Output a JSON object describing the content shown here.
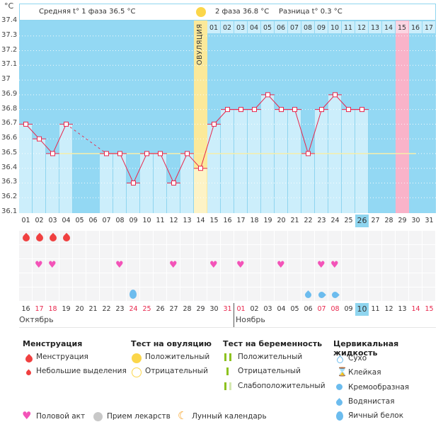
{
  "unit_label": "°C",
  "header": {
    "phase1": "Средняя t° 1 фаза 36.5 °C",
    "phase2": "2 фаза 36.8 °C",
    "difference": "Разница t° 0.3 °C",
    "ovulation_label": "ОВУЛЯЦИЯ"
  },
  "colors": {
    "chart_bg": "#93d8f3",
    "bar_fill": "#cceefb",
    "line": "#e8264c",
    "cover_line": "#f6eeaa",
    "ovulation": "#fbe99a",
    "highlight_pink": "#f9b3c9",
    "today": "#8fd5ef"
  },
  "chart_data": {
    "type": "line",
    "title": "Basal body temperature chart",
    "ylabel": "°C",
    "ylim": [
      36.1,
      37.4
    ],
    "yticks": [
      "37.4",
      "37.3",
      "37.2",
      "37.1",
      "37",
      "36.9",
      "36.8",
      "36.7",
      "36.6",
      "36.5",
      "36.4",
      "36.3",
      "36.2",
      "36.1"
    ],
    "cycle_days": [
      "01",
      "02",
      "03",
      "04",
      "05",
      "06",
      "07",
      "08",
      "09",
      "10",
      "11",
      "12",
      "13",
      "14",
      "15",
      "16",
      "17",
      "18",
      "19",
      "20",
      "21",
      "22",
      "23",
      "24",
      "25",
      "26",
      "27",
      "28",
      "29",
      "30",
      "31"
    ],
    "temperatures": [
      36.7,
      36.6,
      36.5,
      36.7,
      null,
      null,
      36.5,
      36.5,
      36.3,
      36.5,
      36.5,
      36.3,
      36.5,
      36.4,
      36.7,
      36.8,
      36.8,
      36.8,
      36.9,
      36.8,
      36.8,
      36.5,
      36.8,
      36.9,
      36.8,
      36.8,
      null,
      null,
      null,
      null,
      null
    ],
    "cover_line": 36.5,
    "ovulation_day": "14",
    "dotted_gap": [
      "04",
      "07"
    ],
    "luteal_day_labels": [
      "01",
      "02",
      "03",
      "04",
      "05",
      "06",
      "07",
      "08",
      "09",
      "10",
      "11",
      "12",
      "13",
      "14",
      "15",
      "16",
      "17"
    ],
    "highlighted_luteal_day": "15",
    "today_cycle_day": "26",
    "calendar_dates": [
      "16",
      "17",
      "18",
      "19",
      "20",
      "21",
      "22",
      "23",
      "24",
      "25",
      "26",
      "27",
      "28",
      "29",
      "30",
      "31",
      "01",
      "02",
      "03",
      "04",
      "05",
      "06",
      "07",
      "08",
      "09",
      "10",
      "11",
      "12",
      "13",
      "14",
      "15"
    ],
    "weekend_dates_index": [
      1,
      2,
      8,
      9,
      15,
      16,
      22,
      23,
      29,
      30
    ],
    "today_date_index": 25,
    "months": [
      {
        "label": "Октябрь",
        "start_index": 0
      },
      {
        "label": "Ноябрь",
        "start_index": 16
      }
    ],
    "menstruation_days": [
      "01",
      "02",
      "03",
      "04"
    ],
    "intercourse_days": [
      "02",
      "03",
      "08",
      "12",
      "15",
      "17",
      "20",
      "23",
      "24"
    ],
    "cervical_fluid": [
      {
        "day": "09",
        "type": "egg-white"
      },
      {
        "day": "22",
        "type": "watery"
      },
      {
        "day": "23",
        "type": "creamy"
      },
      {
        "day": "24",
        "type": "creamy"
      }
    ]
  },
  "legend": {
    "menstruation": {
      "title": "Менструация",
      "items": [
        "Менструация",
        "Небольшие выделения"
      ]
    },
    "ovulation_test": {
      "title": "Тест на овуляцию",
      "items": [
        "Положительный",
        "Отрицательный"
      ]
    },
    "pregnancy_test": {
      "title": "Тест на беременность",
      "items": [
        "Положительный",
        "Отрицательный",
        "Слабоположительный"
      ]
    },
    "cervical_fluid": {
      "title": "Цервикальная жидкость",
      "items": [
        "Сухо",
        "Клейкая",
        "Кремообразная",
        "Водянистая",
        "Яичный белок"
      ]
    },
    "bottom": [
      "Половой акт",
      "Прием лекарств",
      "Лунный календарь"
    ]
  }
}
